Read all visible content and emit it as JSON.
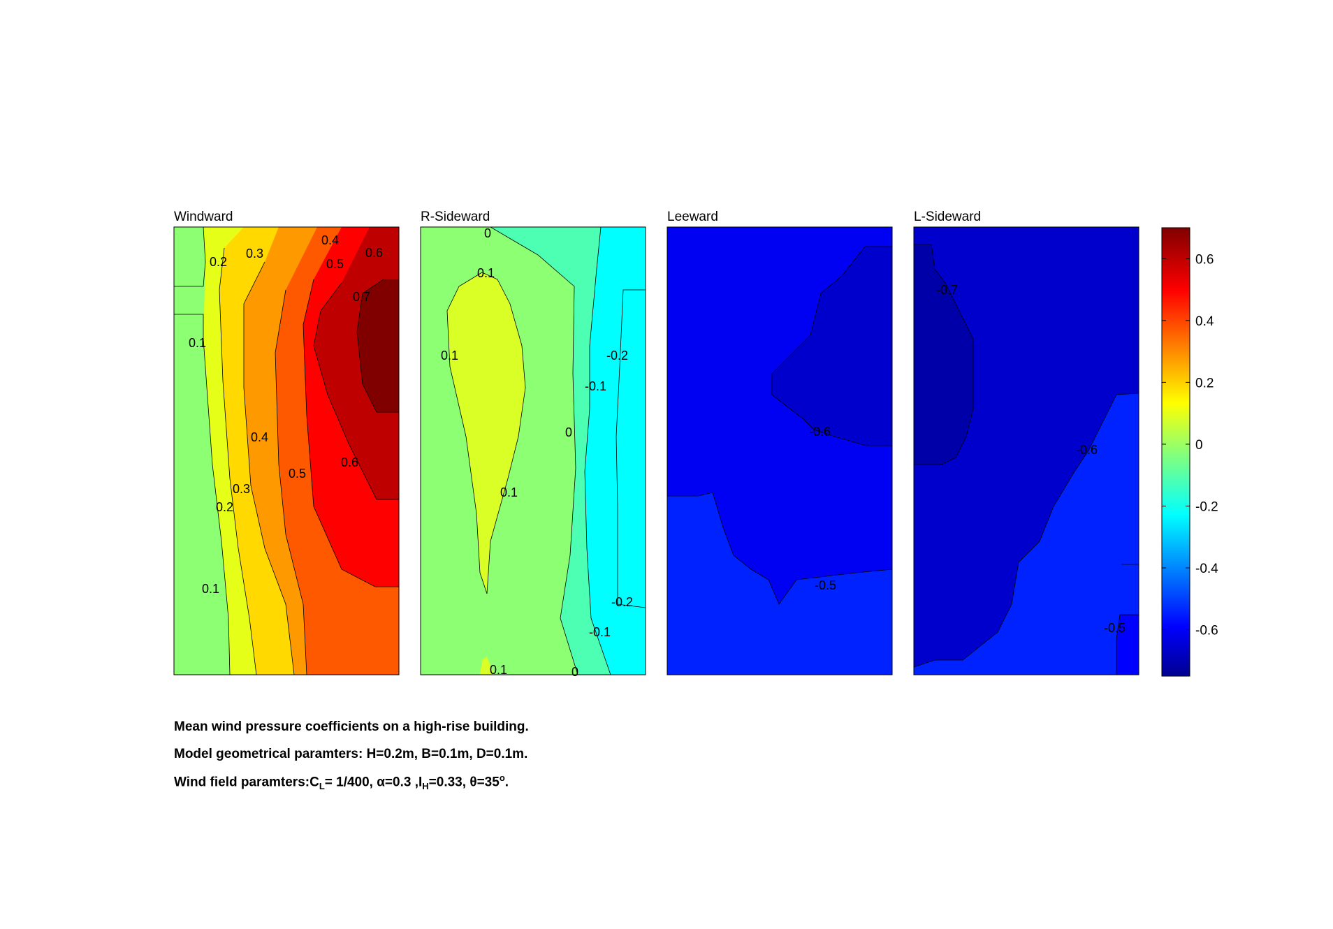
{
  "chart_data": {
    "type": "contour",
    "colormap": "jet",
    "clim": [
      -0.75,
      0.7
    ],
    "panels": [
      {
        "title": "Windward",
        "bands": [
          {
            "level": 0.05,
            "color": "#8cff73"
          },
          {
            "level": 0.15,
            "color": "#e6ff19"
          },
          {
            "level": 0.25,
            "color": "#ffd900"
          },
          {
            "level": 0.35,
            "color": "#ff9900"
          },
          {
            "level": 0.45,
            "color": "#ff5900"
          },
          {
            "level": 0.55,
            "color": "#ff0000"
          },
          {
            "level": 0.65,
            "color": "#bf0000"
          },
          {
            "level": 0.72,
            "color": "#800000"
          }
        ],
        "labels": [
          "0.2",
          "0.3",
          "0.4",
          "0.5",
          "0.6",
          "0.7",
          "0.1",
          "0.4",
          "0.5",
          "0.6",
          "0.3",
          "0.2",
          "0.1"
        ]
      },
      {
        "title": "R-Sideward",
        "bands": [
          {
            "level": -0.15,
            "color": "#00ffff"
          },
          {
            "level": -0.05,
            "color": "#4dffb3"
          },
          {
            "level": 0.05,
            "color": "#8cff73"
          },
          {
            "level": 0.12,
            "color": "#d9ff26"
          }
        ],
        "labels": [
          "0",
          "0.1",
          "0.1",
          "-0.2",
          "-0.1",
          "0",
          "0.1",
          "-0.2",
          "-0.1",
          "0.1",
          "0"
        ]
      },
      {
        "title": "Leeward",
        "bands": [
          {
            "level": -0.5,
            "color": "#0022ff"
          },
          {
            "level": -0.6,
            "color": "#0000f2"
          },
          {
            "level": -0.65,
            "color": "#0000cc"
          }
        ],
        "labels": [
          "-0.6",
          "-0.5"
        ]
      },
      {
        "title": "L-Sideward",
        "bands": [
          {
            "level": -0.5,
            "color": "#0022ff"
          },
          {
            "level": -0.6,
            "color": "#0000cc"
          },
          {
            "level": -0.7,
            "color": "#0000a8"
          }
        ],
        "labels": [
          "-0.7",
          "-0.6",
          "-0.5"
        ]
      }
    ],
    "colorbar": {
      "ticks": [
        "0.6",
        "0.4",
        "0.2",
        "0",
        "-0.2",
        "-0.4",
        "-0.6"
      ],
      "tick_values": [
        0.6,
        0.4,
        0.2,
        0,
        -0.2,
        -0.4,
        -0.6
      ],
      "range": [
        -0.75,
        0.7
      ]
    }
  },
  "caption": {
    "line1": "Mean wind pressure coefficients on a high-rise building.",
    "line2": "Model geometrical paramters: H=0.2m, B=0.1m, D=0.1m.",
    "line3_prefix": "Wind field paramters:C",
    "line3_sub_L": "L",
    "line3_cl": "= 1/400, ",
    "line3_alpha": "α=0.3 ,I",
    "line3_sub_H": "H",
    "line3_ih": "=0.33, ",
    "line3_theta": "θ=35",
    "line3_sup": "o",
    "line3_end": "."
  }
}
